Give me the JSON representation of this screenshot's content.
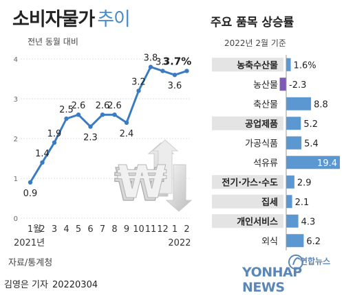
{
  "header": {
    "title_main": "소비자물가",
    "title_sub": "추이",
    "subtitle": "전년 동월 대비",
    "right_title": "주요 품목 상승률",
    "right_subtitle": "2022년 2월 기준"
  },
  "footer": {
    "source": "자료/통계청",
    "author": "김영은 기자",
    "date": "20220304",
    "watermark_brand": "연합뉴스",
    "watermark_text": "YONHAP NEWS"
  },
  "colors": {
    "line": "#3a7cc4",
    "bar_positive": "#5b97d0",
    "bar_negative": "#7d5bb5",
    "highlight_bg": "#e4e4e4",
    "grid": "#dddddd"
  },
  "icon": "won-currency-3d-arrows-icon",
  "chart_data": [
    {
      "type": "line",
      "title": "소비자물가 추이",
      "subtitle": "전년 동월 대비",
      "x": [
        "1월",
        "2",
        "3",
        "4",
        "5",
        "6",
        "7",
        "8",
        "9",
        "10",
        "11",
        "12",
        "1",
        "2"
      ],
      "year_labels": [
        {
          "index": 0,
          "label": "2021년"
        },
        {
          "index": 13,
          "label": "2022"
        }
      ],
      "values": [
        0.9,
        1.4,
        1.9,
        2.5,
        2.6,
        2.3,
        2.6,
        2.6,
        2.4,
        3.2,
        3.8,
        3.7,
        3.6,
        3.7
      ],
      "value_labels": [
        "0.9",
        "1.4",
        "1.9",
        "2.5",
        "2.6",
        "2.3",
        "2.6",
        "2.6",
        "2.4",
        "3.2",
        "3.8",
        "3.7",
        "3.6",
        "3.7%"
      ],
      "ylim": [
        0,
        4
      ],
      "yticks": [
        0,
        1,
        2,
        3,
        4
      ],
      "grid": true
    },
    {
      "type": "bar",
      "orientation": "horizontal",
      "title": "주요 품목 상승률",
      "subtitle": "2022년 2월 기준",
      "categories": [
        "농축수산물",
        "농산물",
        "축산물",
        "공업제품",
        "가공식품",
        "석유류",
        "전기·가스·수도",
        "집세",
        "개인서비스",
        "외식"
      ],
      "values": [
        1.6,
        -2.3,
        8.8,
        5.2,
        5.4,
        19.4,
        2.9,
        2.1,
        4.3,
        6.2
      ],
      "value_labels": [
        "1.6%",
        "-2.3",
        "8.8",
        "5.2",
        "5.4",
        "19.4",
        "2.9",
        "2.1",
        "4.3",
        "6.2"
      ],
      "highlighted": [
        true,
        false,
        false,
        true,
        false,
        false,
        true,
        true,
        true,
        false
      ]
    }
  ]
}
